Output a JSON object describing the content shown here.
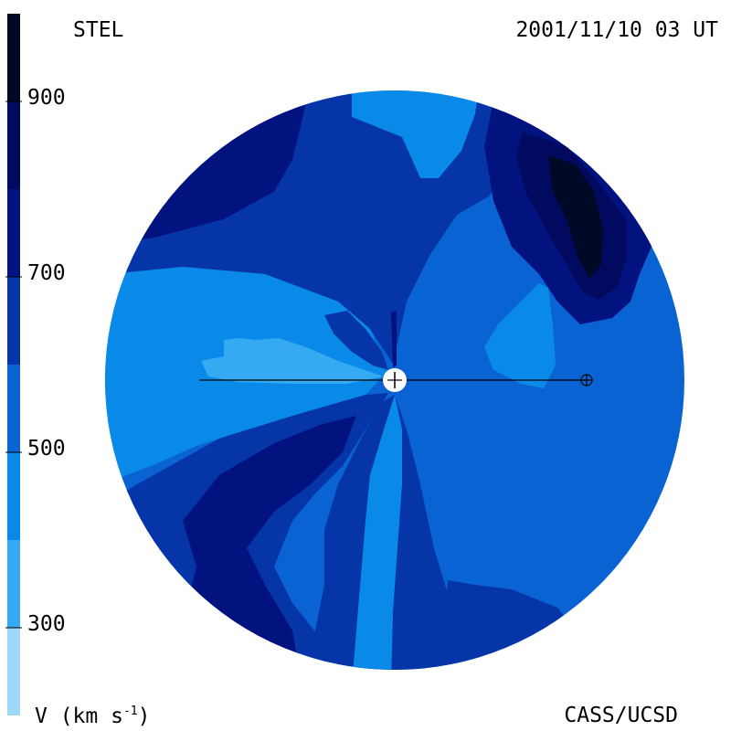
{
  "header": {
    "source_label": "STEL",
    "timestamp": "2001/11/10 03 UT"
  },
  "footer": {
    "unit_label": "V (km s",
    "unit_exponent": "-1",
    "unit_close": ")",
    "credit": "CASS/UCSD"
  },
  "chart_data": {
    "type": "heatmap",
    "title": "STEL",
    "subtitle": "2001/11/10 03 UT",
    "colorbar": {
      "label": "V (km s-1)",
      "range": [
        200,
        1000
      ],
      "ticks": [
        300,
        500,
        700,
        900
      ],
      "tick_labels": [
        "300",
        "500",
        "700",
        "900"
      ],
      "bins": [
        {
          "from": 200,
          "to": 300,
          "color": "#9fd8f8"
        },
        {
          "from": 300,
          "to": 400,
          "color": "#35aaf2"
        },
        {
          "from": 400,
          "to": 500,
          "color": "#0a8ae8"
        },
        {
          "from": 500,
          "to": 600,
          "color": "#0a63d3"
        },
        {
          "from": 600,
          "to": 700,
          "color": "#0635a8"
        },
        {
          "from": 700,
          "to": 800,
          "color": "#02127f"
        },
        {
          "from": 800,
          "to": 900,
          "color": "#010a5e"
        },
        {
          "from": 900,
          "to": 1000,
          "color": "#000a26"
        }
      ]
    },
    "field": {
      "description_units": "km s-1",
      "background_value": 550,
      "regions": [
        {
          "zone": "upper-left",
          "value": 750
        },
        {
          "zone": "top-center",
          "value": 450
        },
        {
          "zone": "upper-band",
          "value": 650
        },
        {
          "zone": "upper-right-core",
          "value": 950
        },
        {
          "zone": "upper-right-ring",
          "value": 850
        },
        {
          "zone": "upper-right-outer",
          "value": 750
        },
        {
          "zone": "left-band",
          "value": 450
        },
        {
          "zone": "left-inner",
          "value": 350
        },
        {
          "zone": "right-inner",
          "value": 450
        },
        {
          "zone": "lower-left-outer",
          "value": 650
        },
        {
          "zone": "lower-left-core",
          "value": 750
        },
        {
          "zone": "lower-center-jet",
          "value": 450
        },
        {
          "zone": "lower-center-ring",
          "value": 650
        },
        {
          "zone": "lower-right",
          "value": 650
        }
      ]
    },
    "markers": [
      {
        "name": "sun",
        "symbol": "plus"
      },
      {
        "name": "earth",
        "symbol": "circled-plus"
      }
    ]
  }
}
